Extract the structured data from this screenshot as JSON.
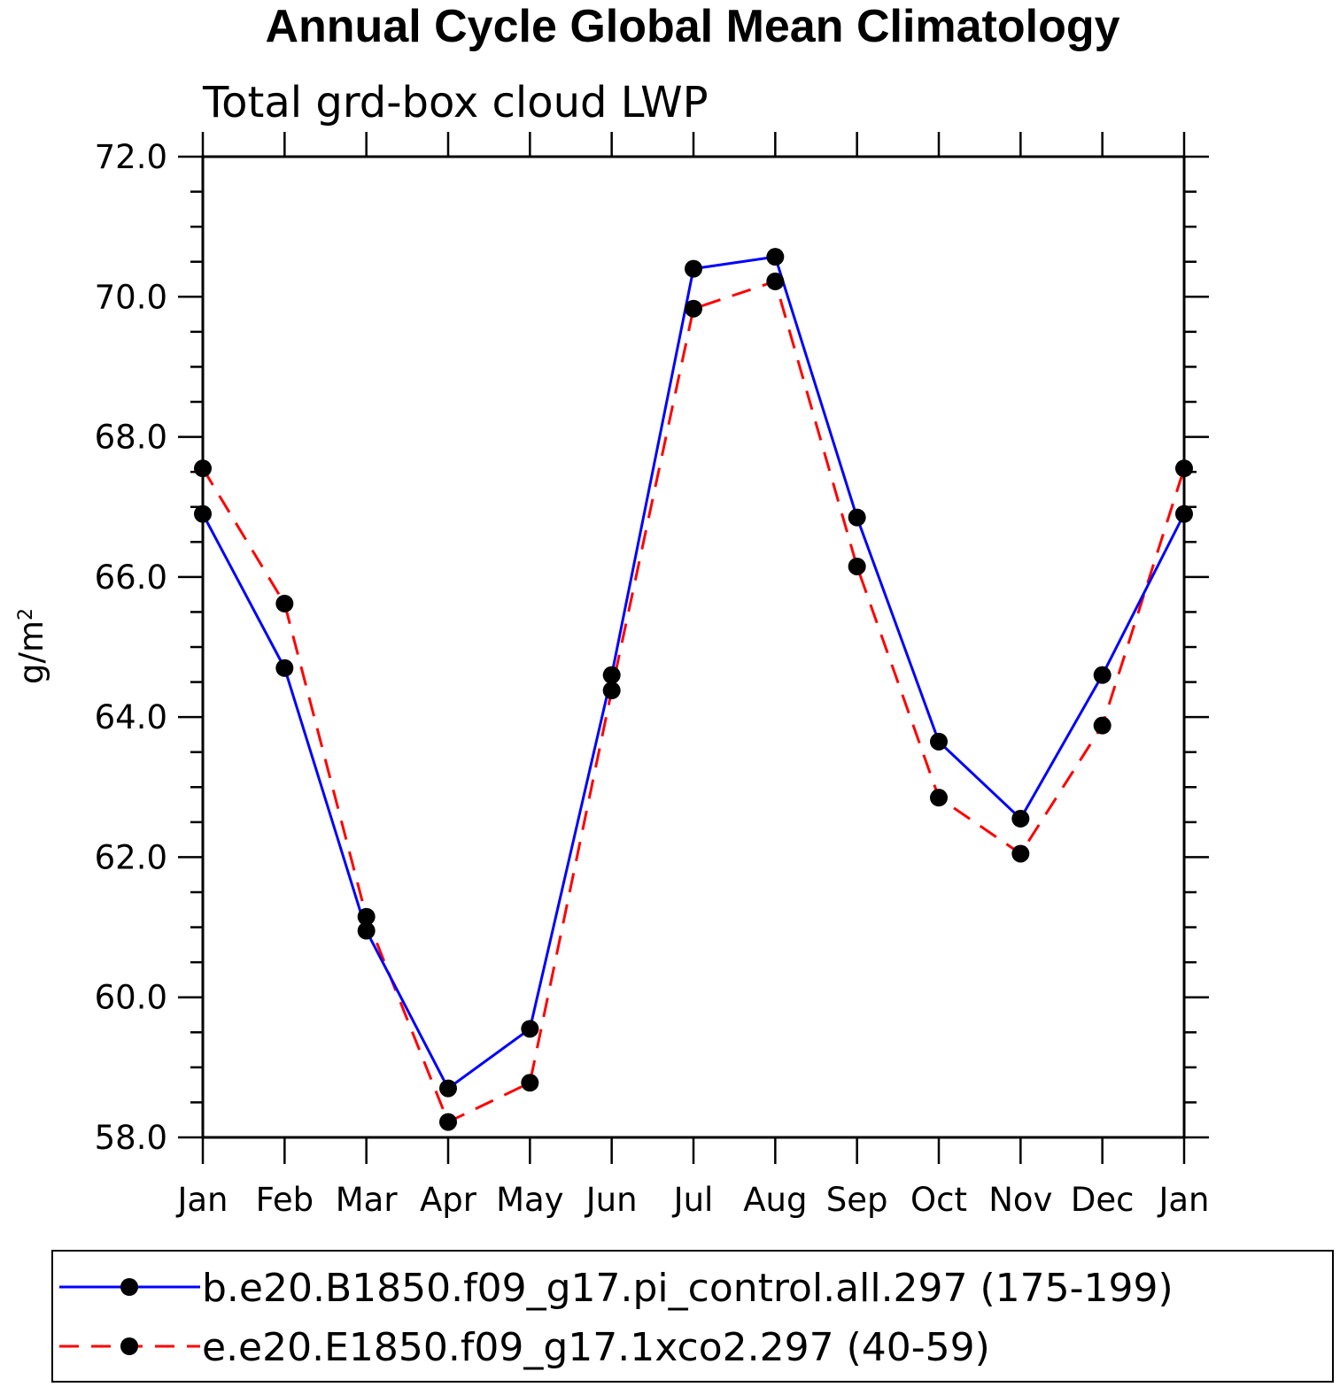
{
  "chart_data": {
    "type": "line",
    "title": "Annual Cycle Global Mean Climatology",
    "subtitle": "Total grd-box cloud LWP",
    "ylabel": "g/m",
    "ylabel_superscript": "2",
    "xlabel": "",
    "categories": [
      "Jan",
      "Feb",
      "Mar",
      "Apr",
      "May",
      "Jun",
      "Jul",
      "Aug",
      "Sep",
      "Oct",
      "Nov",
      "Dec",
      "Jan"
    ],
    "ylim": [
      58.0,
      72.0
    ],
    "yticks": [
      "58.0",
      "60.0",
      "62.0",
      "64.0",
      "66.0",
      "68.0",
      "70.0",
      "72.0"
    ],
    "y_minor_step": 0.5,
    "series": [
      {
        "name": "b.e20.B1850.f09_g17.pi_control.all.297 (175-199)",
        "color": "#0000ff",
        "dash": "solid",
        "values": [
          66.9,
          64.7,
          60.95,
          58.7,
          59.55,
          64.6,
          70.4,
          70.57,
          66.85,
          63.65,
          62.55,
          64.6,
          66.9
        ]
      },
      {
        "name": "e.e20.E1850.f09_g17.1xco2.297 (40-59)",
        "color": "#ff0000",
        "dash": "dashed",
        "values": [
          67.55,
          65.62,
          61.15,
          58.22,
          58.78,
          64.38,
          69.83,
          70.22,
          66.15,
          62.85,
          62.05,
          63.88,
          67.55
        ]
      }
    ],
    "marker_color": "#000000",
    "legend_position": "bottom"
  }
}
